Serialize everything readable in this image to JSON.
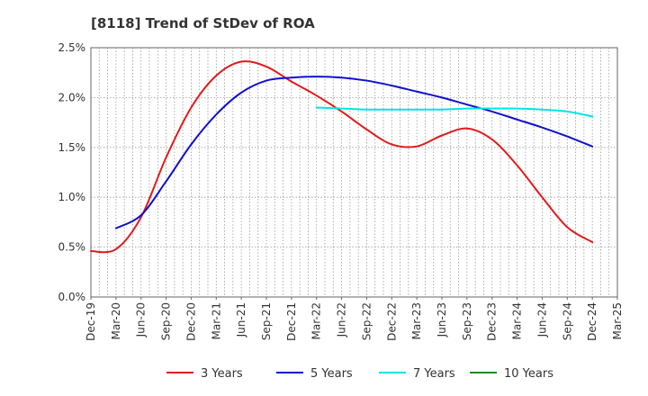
{
  "chart_data": {
    "type": "line",
    "title": "[8118]  Trend of StDev of ROA",
    "xlabel": "",
    "ylabel": "",
    "ylim": [
      0,
      2.5
    ],
    "yticks": [
      0,
      0.5,
      1.0,
      1.5,
      2.0,
      2.5
    ],
    "ytick_labels": [
      "0.0%",
      "0.5%",
      "1.0%",
      "1.5%",
      "2.0%",
      "2.5%"
    ],
    "x_ticks": [
      "Dec-19",
      "Mar-20",
      "Jun-20",
      "Sep-20",
      "Dec-20",
      "Mar-21",
      "Jun-21",
      "Sep-21",
      "Dec-21",
      "Mar-22",
      "Jun-22",
      "Sep-22",
      "Dec-22",
      "Mar-23",
      "Jun-23",
      "Sep-23",
      "Dec-23",
      "Mar-24",
      "Jun-24",
      "Sep-24",
      "Dec-24",
      "Mar-25"
    ],
    "grid": true,
    "legend_position": "bottom",
    "series": [
      {
        "name": "3 Years",
        "color": "#e31a1c",
        "x": [
          "Dec-19",
          "Mar-20",
          "Jun-20",
          "Sep-20",
          "Dec-20",
          "Mar-21",
          "Jun-21",
          "Sep-21",
          "Dec-21",
          "Mar-22",
          "Jun-22",
          "Sep-22",
          "Dec-22",
          "Mar-23",
          "Jun-23",
          "Sep-23",
          "Dec-23",
          "Mar-24",
          "Jun-24",
          "Sep-24",
          "Dec-24"
        ],
        "values": [
          0.46,
          0.48,
          0.8,
          1.4,
          1.9,
          2.22,
          2.36,
          2.31,
          2.16,
          2.02,
          1.86,
          1.68,
          1.53,
          1.51,
          1.62,
          1.69,
          1.58,
          1.32,
          1.0,
          0.7,
          0.55
        ]
      },
      {
        "name": "5 Years",
        "color": "#1010cc",
        "x": [
          "Mar-20",
          "Jun-20",
          "Sep-20",
          "Dec-20",
          "Mar-21",
          "Jun-21",
          "Sep-21",
          "Dec-21",
          "Mar-22",
          "Jun-22",
          "Sep-22",
          "Dec-22",
          "Mar-23",
          "Jun-23",
          "Sep-23",
          "Dec-23",
          "Mar-24",
          "Jun-24",
          "Sep-24",
          "Dec-24"
        ],
        "values": [
          0.69,
          0.82,
          1.16,
          1.53,
          1.83,
          2.05,
          2.17,
          2.2,
          2.21,
          2.2,
          2.17,
          2.12,
          2.06,
          2.0,
          1.93,
          1.86,
          1.78,
          1.7,
          1.61,
          1.51
        ]
      },
      {
        "name": "7 Years",
        "color": "#00e5e5",
        "x": [
          "Mar-22",
          "Jun-22",
          "Sep-22",
          "Dec-22",
          "Mar-23",
          "Jun-23",
          "Sep-23",
          "Dec-23",
          "Mar-24",
          "Jun-24",
          "Sep-24",
          "Dec-24"
        ],
        "values": [
          1.9,
          1.89,
          1.88,
          1.88,
          1.88,
          1.88,
          1.89,
          1.89,
          1.89,
          1.88,
          1.86,
          1.81
        ]
      },
      {
        "name": "10 Years",
        "color": "#228b22",
        "x": [],
        "values": []
      }
    ]
  }
}
